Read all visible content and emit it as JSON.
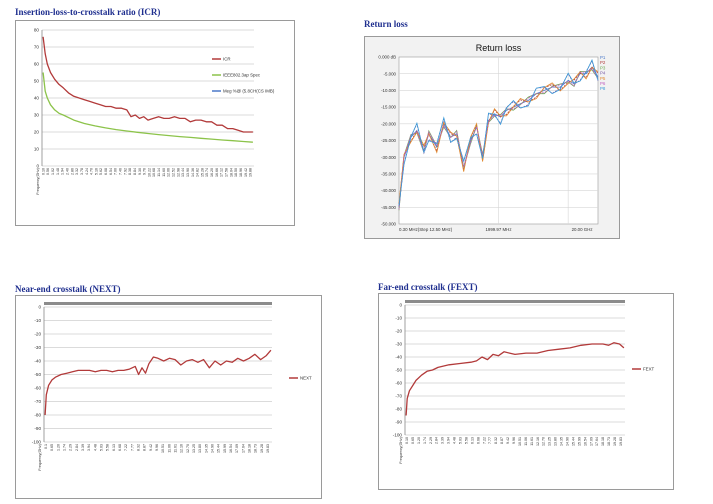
{
  "titles": {
    "icr": "Insertion-loss-to-crosstalk ratio (ICR)",
    "return_loss": "Return loss",
    "next": "Near-end crosstalk (NEXT)",
    "fext": "Far-end crosstalk (FEXT)"
  },
  "colors": {
    "red_series": "#b23a3a",
    "green_series": "#8cc34a",
    "blue_series": "#4a78c8",
    "grid": "#cfcfcf",
    "top_band": "#8c8c8c",
    "rl_background": "#f2f2f2"
  },
  "chart_data": [
    {
      "id": "icr",
      "type": "line",
      "title": "Insertion-loss-to-crosstalk ratio (ICR)",
      "xlabel": "Frequency(GHz)",
      "ylim": [
        0,
        80
      ],
      "yticks": [
        "80",
        "70",
        "60",
        "50",
        "40",
        "30",
        "20",
        "10",
        "0"
      ],
      "xticks": [
        "0.10",
        "0.56",
        "1.02",
        "1.48",
        "1.94",
        "2.40",
        "2.86",
        "3.32",
        "3.78",
        "4.24",
        "4.70",
        "5.16",
        "5.62",
        "6.08",
        "6.54",
        "7.00",
        "7.46",
        "7.92",
        "8.38",
        "8.84",
        "9.30",
        "9.76",
        "10.22",
        "10.68",
        "11.14",
        "11.60",
        "12.06",
        "12.52",
        "12.98",
        "13.44",
        "13.90",
        "14.36",
        "14.82",
        "15.28",
        "15.74",
        "16.20",
        "16.66",
        "17.12",
        "17.58",
        "18.04",
        "18.50",
        "18.96",
        "19.42",
        "19.88"
      ],
      "legend_position": "right",
      "series": [
        {
          "name": "ICR",
          "color": "#b23a3a",
          "x": [
            0.1,
            0.3,
            0.5,
            0.8,
            1.2,
            1.6,
            2.0,
            2.5,
            3.0,
            3.5,
            4.0,
            4.5,
            5.0,
            5.5,
            6.0,
            6.5,
            7.0,
            7.5,
            8.0,
            8.4,
            8.8,
            9.2,
            9.6,
            10.0,
            10.5,
            11.0,
            11.5,
            12.0,
            12.5,
            13.0,
            13.5,
            14.0,
            14.5,
            15.0,
            15.5,
            16.0,
            16.5,
            17.0,
            17.5,
            18.0,
            18.5,
            19.0,
            19.5,
            19.9
          ],
          "y": [
            76,
            66,
            60,
            55,
            51,
            48,
            46,
            43,
            41,
            40,
            39,
            38,
            37,
            36,
            35,
            35,
            34,
            34,
            33,
            29,
            30,
            28,
            29,
            27,
            28,
            29,
            28,
            28,
            29,
            28,
            28,
            26,
            27,
            27,
            26,
            26,
            24,
            24,
            22,
            22,
            21,
            20,
            20,
            20
          ]
        },
        {
          "name": "IEEE802.3ap Spec",
          "color": "#8cc34a",
          "x": [
            0.1,
            0.3,
            0.5,
            0.8,
            1.2,
            1.6,
            2.0,
            3.0,
            4.0,
            5.0,
            6.0,
            7.0,
            8.0,
            9.0,
            10.0,
            11.0,
            12.0,
            13.0,
            14.0,
            15.0,
            16.0,
            17.0,
            18.0,
            19.0,
            19.9
          ],
          "y": [
            55,
            44,
            40,
            36,
            33,
            31,
            30,
            27,
            25,
            23.6,
            22.4,
            21.4,
            20.6,
            19.8,
            19.1,
            18.5,
            17.9,
            17.3,
            16.8,
            16.3,
            15.8,
            15.3,
            14.9,
            14.4,
            14.0
          ]
        },
        {
          "name": "Meg %@ (5.8CH(CS IMB)",
          "color": "#4a78c8",
          "x": [],
          "y": []
        }
      ]
    },
    {
      "id": "return_loss",
      "type": "line",
      "title": "Return loss",
      "ylim": [
        -50,
        0
      ],
      "yticks": [
        "0.000 dB",
        "-5.000",
        "-10.000",
        "-15.000",
        "-20.000",
        "-25.000",
        "-30.000",
        "-35.000",
        "-40.000",
        "-45.000",
        "-50.000"
      ],
      "xticks": [
        "0.30 MHz(Step 12.50 MHz)",
        "1999.97 MHz",
        "20.00 GHz"
      ],
      "legend_position": "top-right",
      "series": [
        {
          "name": "P1",
          "color": "#4a78c8"
        },
        {
          "name": "P2",
          "color": "#b23a3a"
        },
        {
          "name": "P3",
          "color": "#6aa84f"
        },
        {
          "name": "P4",
          "color": "#7a5ca8"
        },
        {
          "name": "P5",
          "color": "#e08a30"
        },
        {
          "name": "P6",
          "color": "#c060c0"
        },
        {
          "name": "P8",
          "color": "#3a9ad8"
        }
      ],
      "x": [
        0,
        0.5,
        1.2,
        1.8,
        2.5,
        3.0,
        3.8,
        4.5,
        5.2,
        5.8,
        6.5,
        7.2,
        7.8,
        8.4,
        9.0,
        9.6,
        10.2,
        10.8,
        11.5,
        12.2,
        13.0,
        13.8,
        14.6,
        15.4,
        16.2,
        17.0,
        17.6,
        18.2,
        18.8,
        19.4,
        20.0
      ],
      "y": [
        -45,
        -30,
        -24,
        -22,
        -28,
        -23,
        -27,
        -20,
        -24,
        -23,
        -33,
        -25,
        -21,
        -30,
        -19,
        -17,
        -18,
        -16,
        -15,
        -14,
        -13,
        -11,
        -10,
        -9,
        -9,
        -7,
        -8,
        -5,
        -5,
        -3,
        -6
      ]
    },
    {
      "id": "next",
      "type": "line",
      "title": "Near-end crosstalk (NEXT)",
      "xlabel": "Frequency(GHz)",
      "ylim": [
        -100,
        0
      ],
      "yticks": [
        "0",
        "-10",
        "-20",
        "-30",
        "-40",
        "-50",
        "-60",
        "-70",
        "-80",
        "-90",
        "-100"
      ],
      "xticks": [
        "0.1",
        "0.65",
        "1.20",
        "1.74",
        "2.29",
        "2.84",
        "3.39",
        "3.94",
        "4.48",
        "5.03",
        "5.58",
        "6.13",
        "6.68",
        "7.22",
        "7.77",
        "8.32",
        "8.87",
        "9.42",
        "9.96",
        "10.51",
        "11.06",
        "11.61",
        "12.16",
        "12.70",
        "13.25",
        "13.80",
        "14.35",
        "14.90",
        "15.44",
        "15.99",
        "16.54",
        "17.09",
        "17.64",
        "18.18",
        "18.73",
        "19.28",
        "19.83"
      ],
      "legend_position": "right",
      "series": [
        {
          "name": "NEXT",
          "color": "#b23a3a",
          "x": [
            0.1,
            0.2,
            0.4,
            0.7,
            1.0,
            1.5,
            2.0,
            2.5,
            3.0,
            3.5,
            4.0,
            4.5,
            5.0,
            5.5,
            6.0,
            6.5,
            7.0,
            7.5,
            8.0,
            8.3,
            8.6,
            8.9,
            9.2,
            9.6,
            10.0,
            10.5,
            11.0,
            11.5,
            12.0,
            12.5,
            13.0,
            13.5,
            14.0,
            14.5,
            15.0,
            15.5,
            16.0,
            16.5,
            17.0,
            17.5,
            18.0,
            18.5,
            19.0,
            19.5,
            19.9
          ],
          "y": [
            -80,
            -65,
            -58,
            -54,
            -52,
            -50,
            -49,
            -48,
            -47,
            -47,
            -47,
            -48,
            -47,
            -47,
            -48,
            -47,
            -47,
            -46,
            -44,
            -50,
            -45,
            -49,
            -42,
            -37,
            -38,
            -40,
            -38,
            -39,
            -43,
            -40,
            -39,
            -41,
            -39,
            -45,
            -40,
            -43,
            -40,
            -41,
            -38,
            -40,
            -38,
            -35,
            -39,
            -36,
            -32
          ]
        }
      ]
    },
    {
      "id": "fext",
      "type": "line",
      "title": "Far-end crosstalk (FEXT)",
      "xlabel": "Frequency(GHz)",
      "ylim": [
        -100,
        0
      ],
      "yticks": [
        "0",
        "-10",
        "-20",
        "-30",
        "-40",
        "-50",
        "-60",
        "-70",
        "-80",
        "-90",
        "-100"
      ],
      "xticks": [
        "0.10",
        "0.65",
        "1.20",
        "1.74",
        "2.29",
        "2.84",
        "3.39",
        "3.94",
        "4.48",
        "5.03",
        "5.58",
        "6.13",
        "6.68",
        "7.22",
        "7.77",
        "8.32",
        "8.87",
        "9.42",
        "9.96",
        "10.51",
        "11.06",
        "11.61",
        "12.16",
        "12.70",
        "13.25",
        "13.80",
        "14.35",
        "14.90",
        "15.44",
        "15.99",
        "16.54",
        "17.09",
        "17.64",
        "18.18",
        "18.73",
        "19.28",
        "19.83"
      ],
      "legend_position": "right",
      "series": [
        {
          "name": "FEXT",
          "color": "#b23a3a",
          "x": [
            0.1,
            0.2,
            0.4,
            0.7,
            1.0,
            1.5,
            2.0,
            2.5,
            3.0,
            4.0,
            5.0,
            6.0,
            6.5,
            7.0,
            7.5,
            8.0,
            8.5,
            9.0,
            9.5,
            10.0,
            11.0,
            12.0,
            13.0,
            14.0,
            15.0,
            16.0,
            17.0,
            18.0,
            18.5,
            19.0,
            19.5,
            19.9
          ],
          "y": [
            -85,
            -72,
            -66,
            -62,
            -58,
            -54,
            -51,
            -50,
            -48,
            -46,
            -45,
            -44,
            -43,
            -40,
            -42,
            -38,
            -39,
            -36,
            -37,
            -38,
            -37,
            -37,
            -35,
            -34,
            -33,
            -31,
            -30,
            -30,
            -31,
            -29,
            -30,
            -33
          ]
        }
      ]
    }
  ]
}
